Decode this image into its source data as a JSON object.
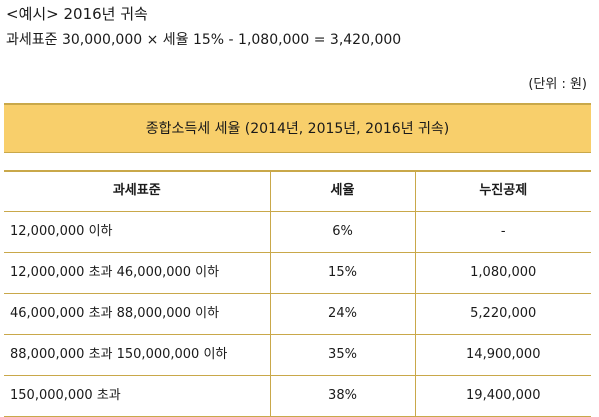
{
  "example": {
    "title": "<예시> 2016년 귀속",
    "formula": "과세표준 30,000,000 × 세율 15% - 1,080,000 = 3,420,000"
  },
  "unit_note": "(단위 : 원)",
  "table": {
    "banner": "종합소득세 세율 (2014년, 2015년, 2016년 귀속)",
    "headers": {
      "base": "과세표준",
      "rate": "세율",
      "deduction": "누진공제"
    },
    "rows": [
      {
        "base": "12,000,000 이하",
        "rate": "6%",
        "deduction": "-"
      },
      {
        "base": "12,000,000 초과 46,000,000 이하",
        "rate": "15%",
        "deduction": "1,080,000"
      },
      {
        "base": "46,000,000 초과 88,000,000 이하",
        "rate": "24%",
        "deduction": "5,220,000"
      },
      {
        "base": "88,000,000 초과 150,000,000 이하",
        "rate": "35%",
        "deduction": "14,900,000"
      },
      {
        "base": "150,000,000 초과",
        "rate": "38%",
        "deduction": "19,400,000"
      }
    ]
  },
  "colors": {
    "banner_background": "#f8cf6b",
    "rule_color": "#c9a84a"
  }
}
